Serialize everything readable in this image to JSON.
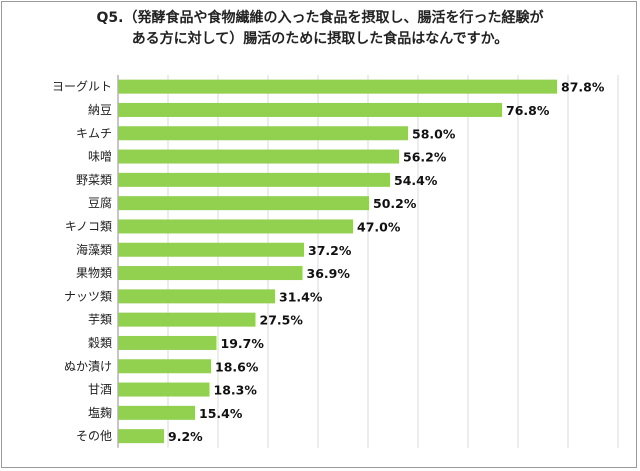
{
  "chart_data": {
    "type": "bar",
    "orientation": "horizontal",
    "title_line1": "Q5.（発酵食品や食物繊維の入った食品を摂取し、腸活を行った経験が",
    "title_line2": "ある方に対して）腸活のために摂取した食品はなんですか。",
    "categories": [
      "ヨーグルト",
      "納豆",
      "キムチ",
      "味噌",
      "野菜類",
      "豆腐",
      "キノコ類",
      "海藻類",
      "果物類",
      "ナッツ類",
      "芋類",
      "穀類",
      "ぬか漬け",
      "甘酒",
      "塩麹",
      "その他"
    ],
    "values": [
      87.8,
      76.8,
      58.0,
      56.2,
      54.4,
      50.2,
      47.0,
      37.2,
      36.9,
      31.4,
      27.5,
      19.7,
      18.6,
      18.3,
      15.4,
      9.2
    ],
    "value_labels": [
      "87.8%",
      "76.8%",
      "58.0%",
      "56.2%",
      "54.4%",
      "50.2%",
      "47.0%",
      "37.2%",
      "36.9%",
      "31.4%",
      "27.5%",
      "19.7%",
      "18.6%",
      "18.3%",
      "15.4%",
      "9.2%"
    ],
    "unit": "%",
    "xlim": [
      0,
      100
    ],
    "gridlines": [
      0,
      10,
      20,
      30,
      40,
      50,
      60,
      70,
      80,
      90,
      100
    ],
    "bar_color": "#92d050",
    "grid_color": "#d9d9d9"
  }
}
